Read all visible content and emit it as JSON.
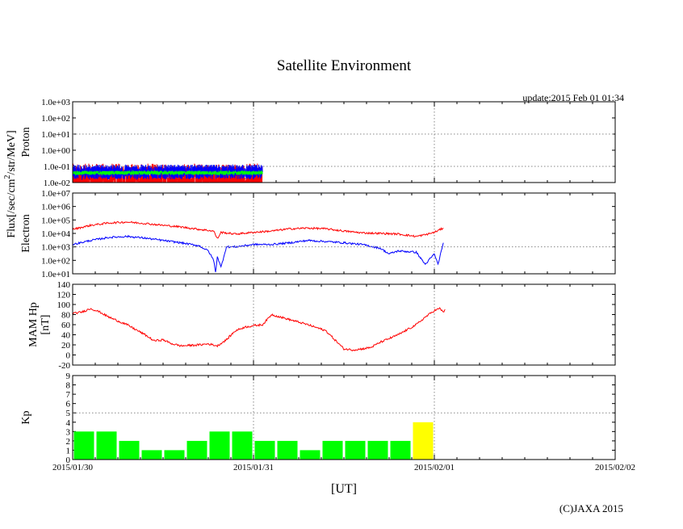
{
  "title": "Satellite Environment",
  "update_text": "update:2015 Feb 01 01:34",
  "copyright": "(C)JAXA 2015",
  "x_axis_label": "[UT]",
  "x_ticks": [
    "2015/01/30",
    "2015/01/31",
    "2015/02/01",
    "2015/02/02"
  ],
  "flux_label": "Flux[/sec/cm",
  "flux_label_sup": "2",
  "flux_label_tail": "/str/MeV]",
  "colors": {
    "red": "#ff0000",
    "blue": "#0000ff",
    "green": "#00ff00",
    "yellow": "#ffff00",
    "grid": "#888888"
  },
  "chart_data": [
    {
      "type": "line",
      "name": "proton",
      "ylabel": "Proton",
      "yscale": "log",
      "ylim_exp": [
        -2,
        3
      ],
      "y_tick_labels": [
        "1.0e+03",
        "1.0e+02",
        "1.0e+01",
        "1.0e+00",
        "1.0e-01",
        "1.0e-02"
      ],
      "xlim_days": [
        0,
        3
      ],
      "series": [
        {
          "name": "proton-ch1",
          "color": "red",
          "base": 0.015,
          "noise_exp": 1.0,
          "x_end": 1.05
        },
        {
          "name": "proton-ch2",
          "color": "blue",
          "base": 0.045,
          "noise_exp": 0.45,
          "x_end": 1.05
        },
        {
          "name": "proton-ch3",
          "color": "green",
          "base": 0.04,
          "noise_exp": 0.12,
          "x_end": 1.05
        }
      ]
    },
    {
      "type": "line",
      "name": "electron",
      "ylabel": "Electron",
      "yscale": "log",
      "ylim_exp": [
        1,
        7
      ],
      "y_tick_labels": [
        "1.0e+07",
        "1.0e+06",
        "1.0e+05",
        "1.0e+04",
        "1.0e+03",
        "1.0e+02",
        "1.0e+01"
      ],
      "xlim_days": [
        0,
        3
      ],
      "series": [
        {
          "name": "electron-high",
          "color": "red",
          "points": [
            [
              0,
              20000
            ],
            [
              0.1,
              40000
            ],
            [
              0.2,
              60000
            ],
            [
              0.3,
              70000
            ],
            [
              0.4,
              55000
            ],
            [
              0.5,
              40000
            ],
            [
              0.6,
              30000
            ],
            [
              0.7,
              20000
            ],
            [
              0.78,
              15000
            ],
            [
              0.8,
              4000
            ],
            [
              0.82,
              12000
            ],
            [
              0.9,
              9000
            ],
            [
              1.0,
              12000
            ],
            [
              1.1,
              15000
            ],
            [
              1.2,
              22000
            ],
            [
              1.3,
              25000
            ],
            [
              1.4,
              22000
            ],
            [
              1.5,
              15000
            ],
            [
              1.6,
              11000
            ],
            [
              1.7,
              10000
            ],
            [
              1.8,
              9000
            ],
            [
              1.9,
              6000
            ],
            [
              1.95,
              8000
            ],
            [
              2.0,
              12000
            ],
            [
              2.05,
              25000
            ]
          ]
        },
        {
          "name": "electron-low",
          "color": "blue",
          "points": [
            [
              0,
              1500
            ],
            [
              0.1,
              3000
            ],
            [
              0.2,
              5000
            ],
            [
              0.3,
              6000
            ],
            [
              0.4,
              4500
            ],
            [
              0.5,
              3000
            ],
            [
              0.6,
              2000
            ],
            [
              0.7,
              1200
            ],
            [
              0.75,
              500
            ],
            [
              0.78,
              100
            ],
            [
              0.79,
              12
            ],
            [
              0.8,
              200
            ],
            [
              0.82,
              30
            ],
            [
              0.85,
              1000
            ],
            [
              0.9,
              1000
            ],
            [
              1.0,
              1500
            ],
            [
              1.1,
              1500
            ],
            [
              1.2,
              2000
            ],
            [
              1.3,
              3000
            ],
            [
              1.4,
              2500
            ],
            [
              1.5,
              2000
            ],
            [
              1.6,
              1500
            ],
            [
              1.7,
              800
            ],
            [
              1.75,
              300
            ],
            [
              1.8,
              500
            ],
            [
              1.9,
              400
            ],
            [
              1.95,
              50
            ],
            [
              2.0,
              300
            ],
            [
              2.02,
              50
            ],
            [
              2.05,
              2000
            ]
          ]
        }
      ]
    },
    {
      "type": "line",
      "name": "mam-hp",
      "ylabel": "MAM Hp",
      "ylabel2": "[nT]",
      "ylim": [
        -20,
        140
      ],
      "y_tick_labels": [
        "140",
        "120",
        "100",
        "80",
        "60",
        "40",
        "20",
        "0",
        "-20"
      ],
      "xlim_days": [
        0,
        3
      ],
      "series": [
        {
          "name": "hp",
          "color": "red",
          "points": [
            [
              0,
              82
            ],
            [
              0.05,
              85
            ],
            [
              0.1,
              92
            ],
            [
              0.15,
              85
            ],
            [
              0.2,
              75
            ],
            [
              0.3,
              60
            ],
            [
              0.4,
              40
            ],
            [
              0.45,
              28
            ],
            [
              0.5,
              30
            ],
            [
              0.55,
              22
            ],
            [
              0.6,
              18
            ],
            [
              0.7,
              20
            ],
            [
              0.75,
              22
            ],
            [
              0.8,
              18
            ],
            [
              0.85,
              30
            ],
            [
              0.9,
              48
            ],
            [
              0.95,
              55
            ],
            [
              1.0,
              58
            ],
            [
              1.05,
              60
            ],
            [
              1.1,
              80
            ],
            [
              1.15,
              75
            ],
            [
              1.2,
              70
            ],
            [
              1.3,
              60
            ],
            [
              1.4,
              48
            ],
            [
              1.45,
              30
            ],
            [
              1.5,
              12
            ],
            [
              1.55,
              10
            ],
            [
              1.6,
              12
            ],
            [
              1.65,
              15
            ],
            [
              1.7,
              25
            ],
            [
              1.8,
              40
            ],
            [
              1.9,
              60
            ],
            [
              1.95,
              75
            ],
            [
              2.0,
              88
            ],
            [
              2.03,
              92
            ],
            [
              2.05,
              85
            ],
            [
              2.06,
              90
            ]
          ]
        }
      ]
    },
    {
      "type": "bar",
      "name": "kp",
      "ylabel": "Kp",
      "ylim": [
        0,
        9
      ],
      "y_tick_labels": [
        "9",
        "8",
        "7",
        "6",
        "5",
        "4",
        "3",
        "2",
        "1",
        "0"
      ],
      "xlim_days": [
        0,
        3
      ],
      "bar_width_days": 0.125,
      "values": [
        3,
        3,
        2,
        1,
        1,
        2,
        3,
        3,
        2,
        2,
        1,
        2,
        2,
        2,
        2,
        4
      ],
      "bar_colors": [
        "green",
        "green",
        "green",
        "green",
        "green",
        "green",
        "green",
        "green",
        "green",
        "green",
        "green",
        "green",
        "green",
        "green",
        "green",
        "yellow"
      ],
      "threshold_line": 5
    }
  ]
}
